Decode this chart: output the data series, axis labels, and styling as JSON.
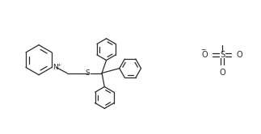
{
  "background": "#ffffff",
  "line_color": "#2a2a2a",
  "line_width": 0.9,
  "font_size": 6.5,
  "figsize": [
    3.23,
    1.66
  ],
  "dpi": 100,
  "xlim": [
    0,
    10
  ],
  "ylim": [
    0,
    5.15
  ]
}
